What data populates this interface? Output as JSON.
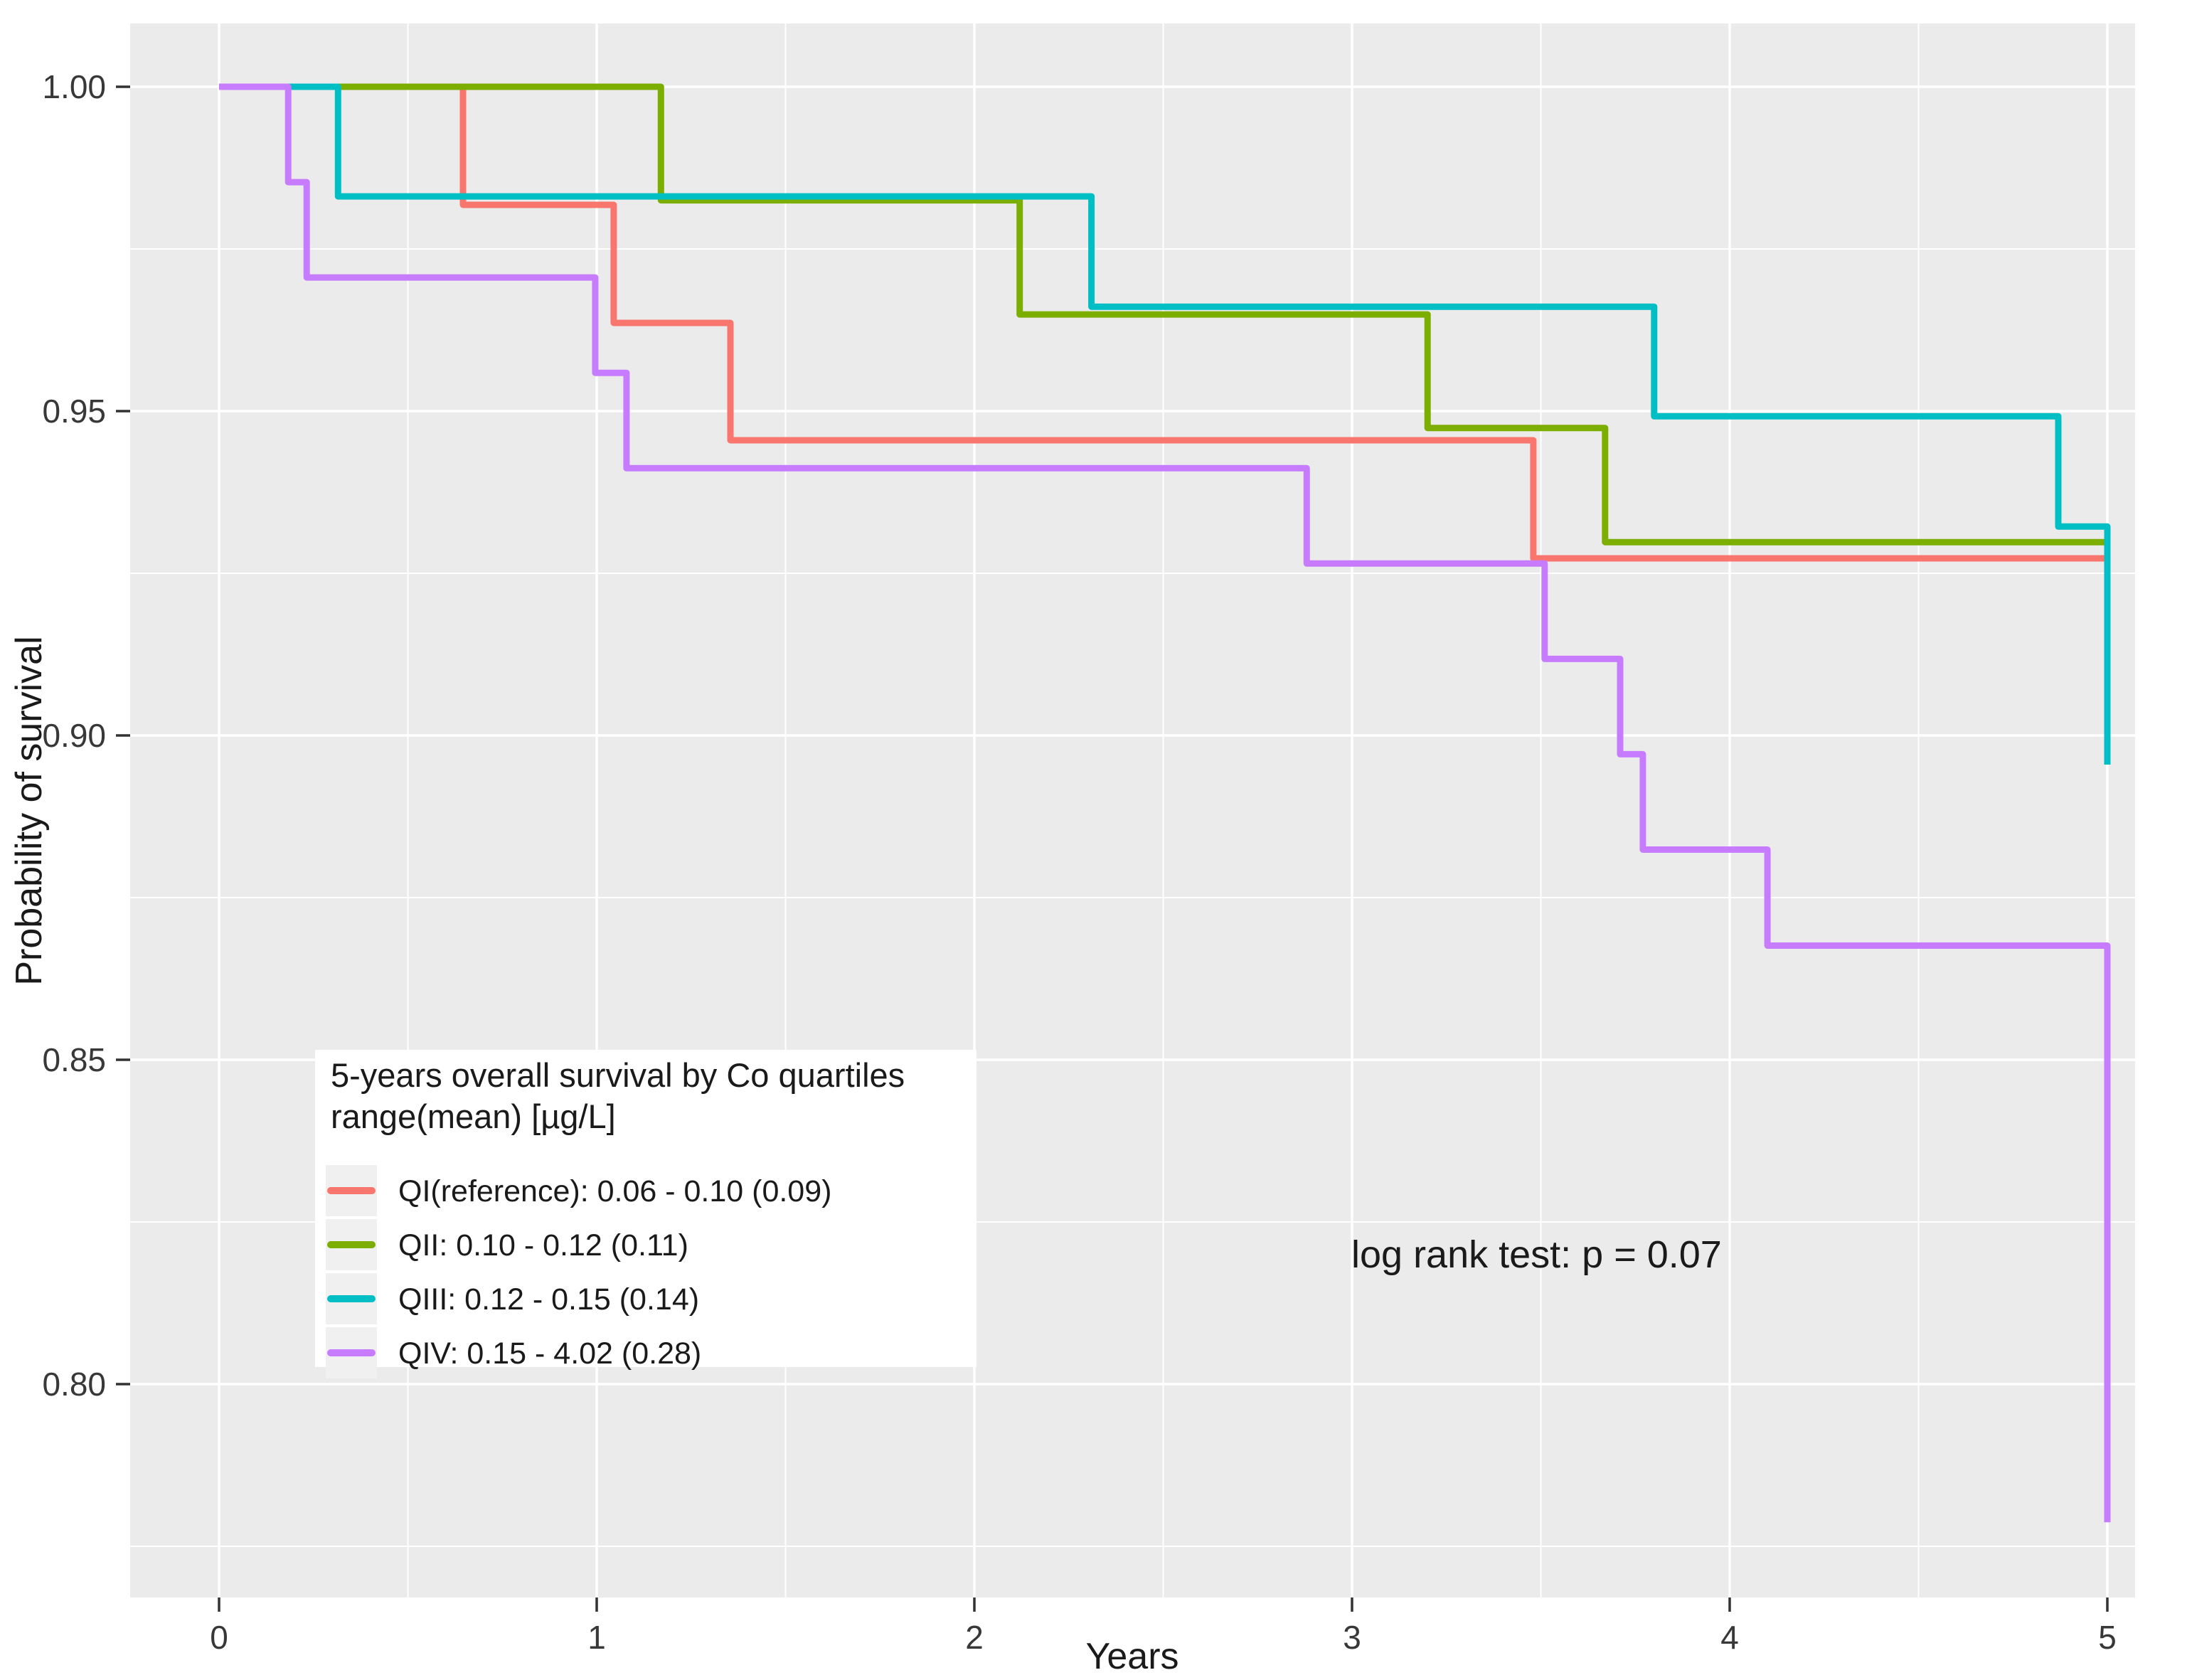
{
  "chart_data": {
    "type": "line",
    "subtype": "kaplan-meier-step",
    "title": "",
    "xlabel": "Years",
    "ylabel": "Probability of survival",
    "x_ticks": [
      0,
      1,
      2,
      3,
      4,
      5
    ],
    "y_ticks": [
      "1.00",
      "0.95",
      "0.90",
      "0.85",
      "0.80"
    ],
    "y_tick_values": [
      1.0,
      0.95,
      0.9,
      0.85,
      0.8
    ],
    "x_minor_ticks": [
      0.5,
      1.5,
      2.5,
      3.5,
      4.5
    ],
    "y_minor_ticks": [
      0.975,
      0.925,
      0.875,
      0.825,
      0.775
    ],
    "xlim": [
      -0.235,
      5.073
    ],
    "ylim": [
      0.767,
      1.0097
    ],
    "grid": true,
    "panel_color": "#EBEBEB",
    "grid_color": "#FFFFFF",
    "annotation": "log rank test: p = 0.07",
    "legend": {
      "position": "inside-bottom-left",
      "background": "#FFFFFF",
      "key_background": "#F0F0F0",
      "title_line1": "5-years overall survival by Co quartiles",
      "title_line2": "range(mean) [µg/L]",
      "items": [
        {
          "label": "QI(reference): 0.06 - 0.10 (0.09)",
          "color": "#F8766D"
        },
        {
          "label": "QII: 0.10 - 0.12 (0.11)",
          "color": "#7CAE00"
        },
        {
          "label": "QIII: 0.12 - 0.15 (0.14)",
          "color": "#00BFC4"
        },
        {
          "label": "QIV: 0.15 - 4.02 (0.28)",
          "color": "#C77CFF"
        }
      ]
    },
    "series": [
      {
        "name": "QI",
        "label": "QI(reference): 0.06 - 0.10 (0.09)",
        "color": "#F8766D",
        "points": [
          [
            0,
            1.0
          ],
          [
            0.646,
            1.0
          ],
          [
            0.646,
            0.9818
          ],
          [
            1.045,
            0.9818
          ],
          [
            1.045,
            0.9636
          ],
          [
            1.354,
            0.9636
          ],
          [
            1.354,
            0.9455
          ],
          [
            3.48,
            0.9455
          ],
          [
            3.48,
            0.9273
          ],
          [
            5.0,
            0.9273
          ]
        ]
      },
      {
        "name": "QII",
        "label": "QII: 0.10 - 0.12 (0.11)",
        "color": "#7CAE00",
        "points": [
          [
            0,
            1.0
          ],
          [
            1.17,
            1.0
          ],
          [
            1.17,
            0.9825
          ],
          [
            2.12,
            0.9825
          ],
          [
            2.12,
            0.9649
          ],
          [
            3.2,
            0.9649
          ],
          [
            3.2,
            0.9474
          ],
          [
            3.67,
            0.9474
          ],
          [
            3.67,
            0.9298
          ],
          [
            5.0,
            0.9298
          ]
        ]
      },
      {
        "name": "QIII",
        "label": "QIII: 0.12 - 0.15 (0.14)",
        "color": "#00BFC4",
        "points": [
          [
            0,
            1.0
          ],
          [
            0.315,
            1.0
          ],
          [
            0.315,
            0.9831
          ],
          [
            2.31,
            0.9831
          ],
          [
            2.31,
            0.9661
          ],
          [
            3.8,
            0.9661
          ],
          [
            3.8,
            0.9492
          ],
          [
            4.87,
            0.9492
          ],
          [
            4.87,
            0.9322
          ],
          [
            5.0,
            0.9322
          ],
          [
            5.0,
            0.8955
          ]
        ]
      },
      {
        "name": "QIV",
        "label": "QIV: 0.15 - 4.02 (0.28)",
        "color": "#C77CFF",
        "points": [
          [
            0,
            1.0
          ],
          [
            0.183,
            1.0
          ],
          [
            0.183,
            0.9853
          ],
          [
            0.232,
            0.9853
          ],
          [
            0.232,
            0.9706
          ],
          [
            0.996,
            0.9706
          ],
          [
            0.996,
            0.9559
          ],
          [
            1.079,
            0.9559
          ],
          [
            1.079,
            0.9412
          ],
          [
            2.88,
            0.9412
          ],
          [
            2.88,
            0.9265
          ],
          [
            3.51,
            0.9265
          ],
          [
            3.51,
            0.9118
          ],
          [
            3.71,
            0.9118
          ],
          [
            3.71,
            0.8971
          ],
          [
            3.77,
            0.8971
          ],
          [
            3.77,
            0.8824
          ],
          [
            4.1,
            0.8824
          ],
          [
            4.1,
            0.8676
          ],
          [
            5.0,
            0.8676
          ],
          [
            5.0,
            0.7787
          ]
        ]
      }
    ]
  }
}
